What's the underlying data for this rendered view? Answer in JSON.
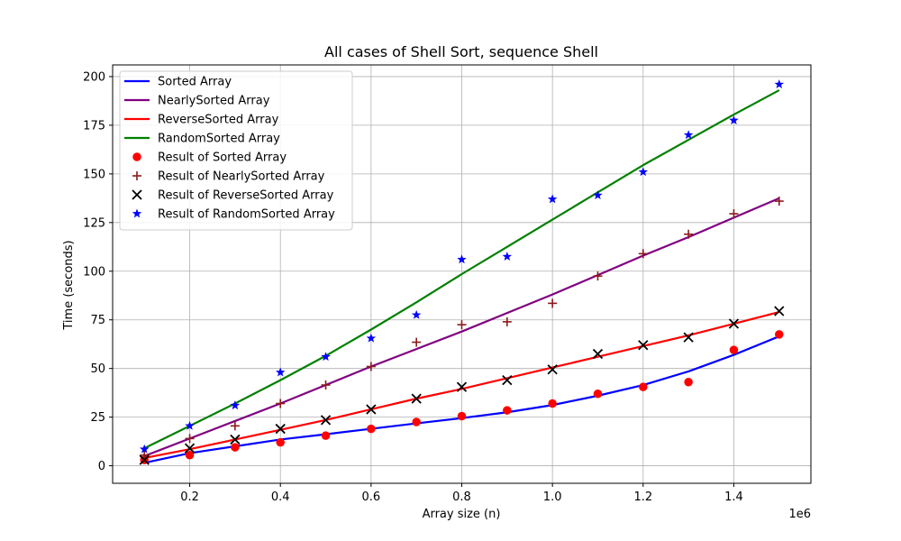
{
  "chart_data": {
    "type": "line+scatter",
    "title": "All cases of Shell Sort, sequence Shell",
    "xlabel": "Array size (n)",
    "ylabel": "Time (seconds)",
    "x_offset_label": "1e6",
    "xlim": [
      0.03,
      1.57
    ],
    "ylim": [
      -9,
      206
    ],
    "x_ticks": [
      0.2,
      0.4,
      0.6,
      0.8,
      1.0,
      1.2,
      1.4
    ],
    "x_tick_labels": [
      "0.2",
      "0.4",
      "0.6",
      "0.8",
      "1.0",
      "1.2",
      "1.4"
    ],
    "y_ticks": [
      0,
      25,
      50,
      75,
      100,
      125,
      150,
      175,
      200
    ],
    "y_tick_labels": [
      "0",
      "25",
      "50",
      "75",
      "100",
      "125",
      "150",
      "175",
      "200"
    ],
    "grid": true,
    "legend_position": "top-left",
    "x": [
      0.1,
      0.2,
      0.3,
      0.4,
      0.5,
      0.6,
      0.7,
      0.8,
      0.9,
      1.0,
      1.1,
      1.2,
      1.3,
      1.4,
      1.5
    ],
    "fits": [
      {
        "name": "Sorted Array",
        "color": "#0000ff",
        "y": [
          1.5,
          6.5,
          10.0,
          13.5,
          16.2,
          19.0,
          21.8,
          24.5,
          27.5,
          31.2,
          36.0,
          41.5,
          48.5,
          57.0,
          66.5
        ]
      },
      {
        "name": "NearlySorted Array",
        "color": "#800080",
        "y": [
          5.0,
          14.0,
          23.0,
          32.0,
          41.5,
          51.0,
          60.0,
          69.0,
          78.5,
          88.0,
          98.0,
          108.0,
          117.5,
          127.5,
          137.5
        ]
      },
      {
        "name": "ReverseSorted Array",
        "color": "#ff0000",
        "y": [
          4.0,
          8.5,
          13.5,
          18.5,
          23.5,
          29.0,
          34.5,
          39.5,
          45.0,
          50.5,
          56.0,
          61.5,
          67.0,
          73.0,
          79.0
        ]
      },
      {
        "name": "RandomSorted Array",
        "color": "#008000",
        "y": [
          9.0,
          20.5,
          32.0,
          44.0,
          56.5,
          70.0,
          84.0,
          98.5,
          112.5,
          126.5,
          140.5,
          154.5,
          167.5,
          180.5,
          193.0
        ]
      }
    ],
    "results": [
      {
        "name": "Result of Sorted Array",
        "color": "#ff0000",
        "marker": "circle",
        "y": [
          3.0,
          5.5,
          9.5,
          12.0,
          15.5,
          19.0,
          22.5,
          25.5,
          28.5,
          32.0,
          37.0,
          40.5,
          43.0,
          59.5,
          67.5
        ]
      },
      {
        "name": "Result of NearlySorted Array",
        "color": "#8b1a1a",
        "marker": "plus",
        "y": [
          5.5,
          14.0,
          20.5,
          32.0,
          41.5,
          51.0,
          63.5,
          72.5,
          74.0,
          83.5,
          97.5,
          109.0,
          119.0,
          129.5,
          136.0
        ]
      },
      {
        "name": "Result of ReverseSorted Array",
        "color": "#000000",
        "marker": "x",
        "y": [
          3.0,
          9.0,
          13.5,
          19.0,
          23.5,
          29.0,
          34.5,
          40.5,
          44.0,
          49.5,
          57.5,
          62.0,
          66.0,
          73.0,
          79.5
        ]
      },
      {
        "name": "Result of RandomSorted Array",
        "color": "#0000ff",
        "marker": "star",
        "y": [
          8.5,
          20.5,
          31.0,
          48.0,
          56.0,
          65.5,
          77.5,
          106.0,
          107.5,
          137.0,
          139.0,
          151.0,
          170.0,
          177.5,
          196.0
        ]
      }
    ]
  }
}
